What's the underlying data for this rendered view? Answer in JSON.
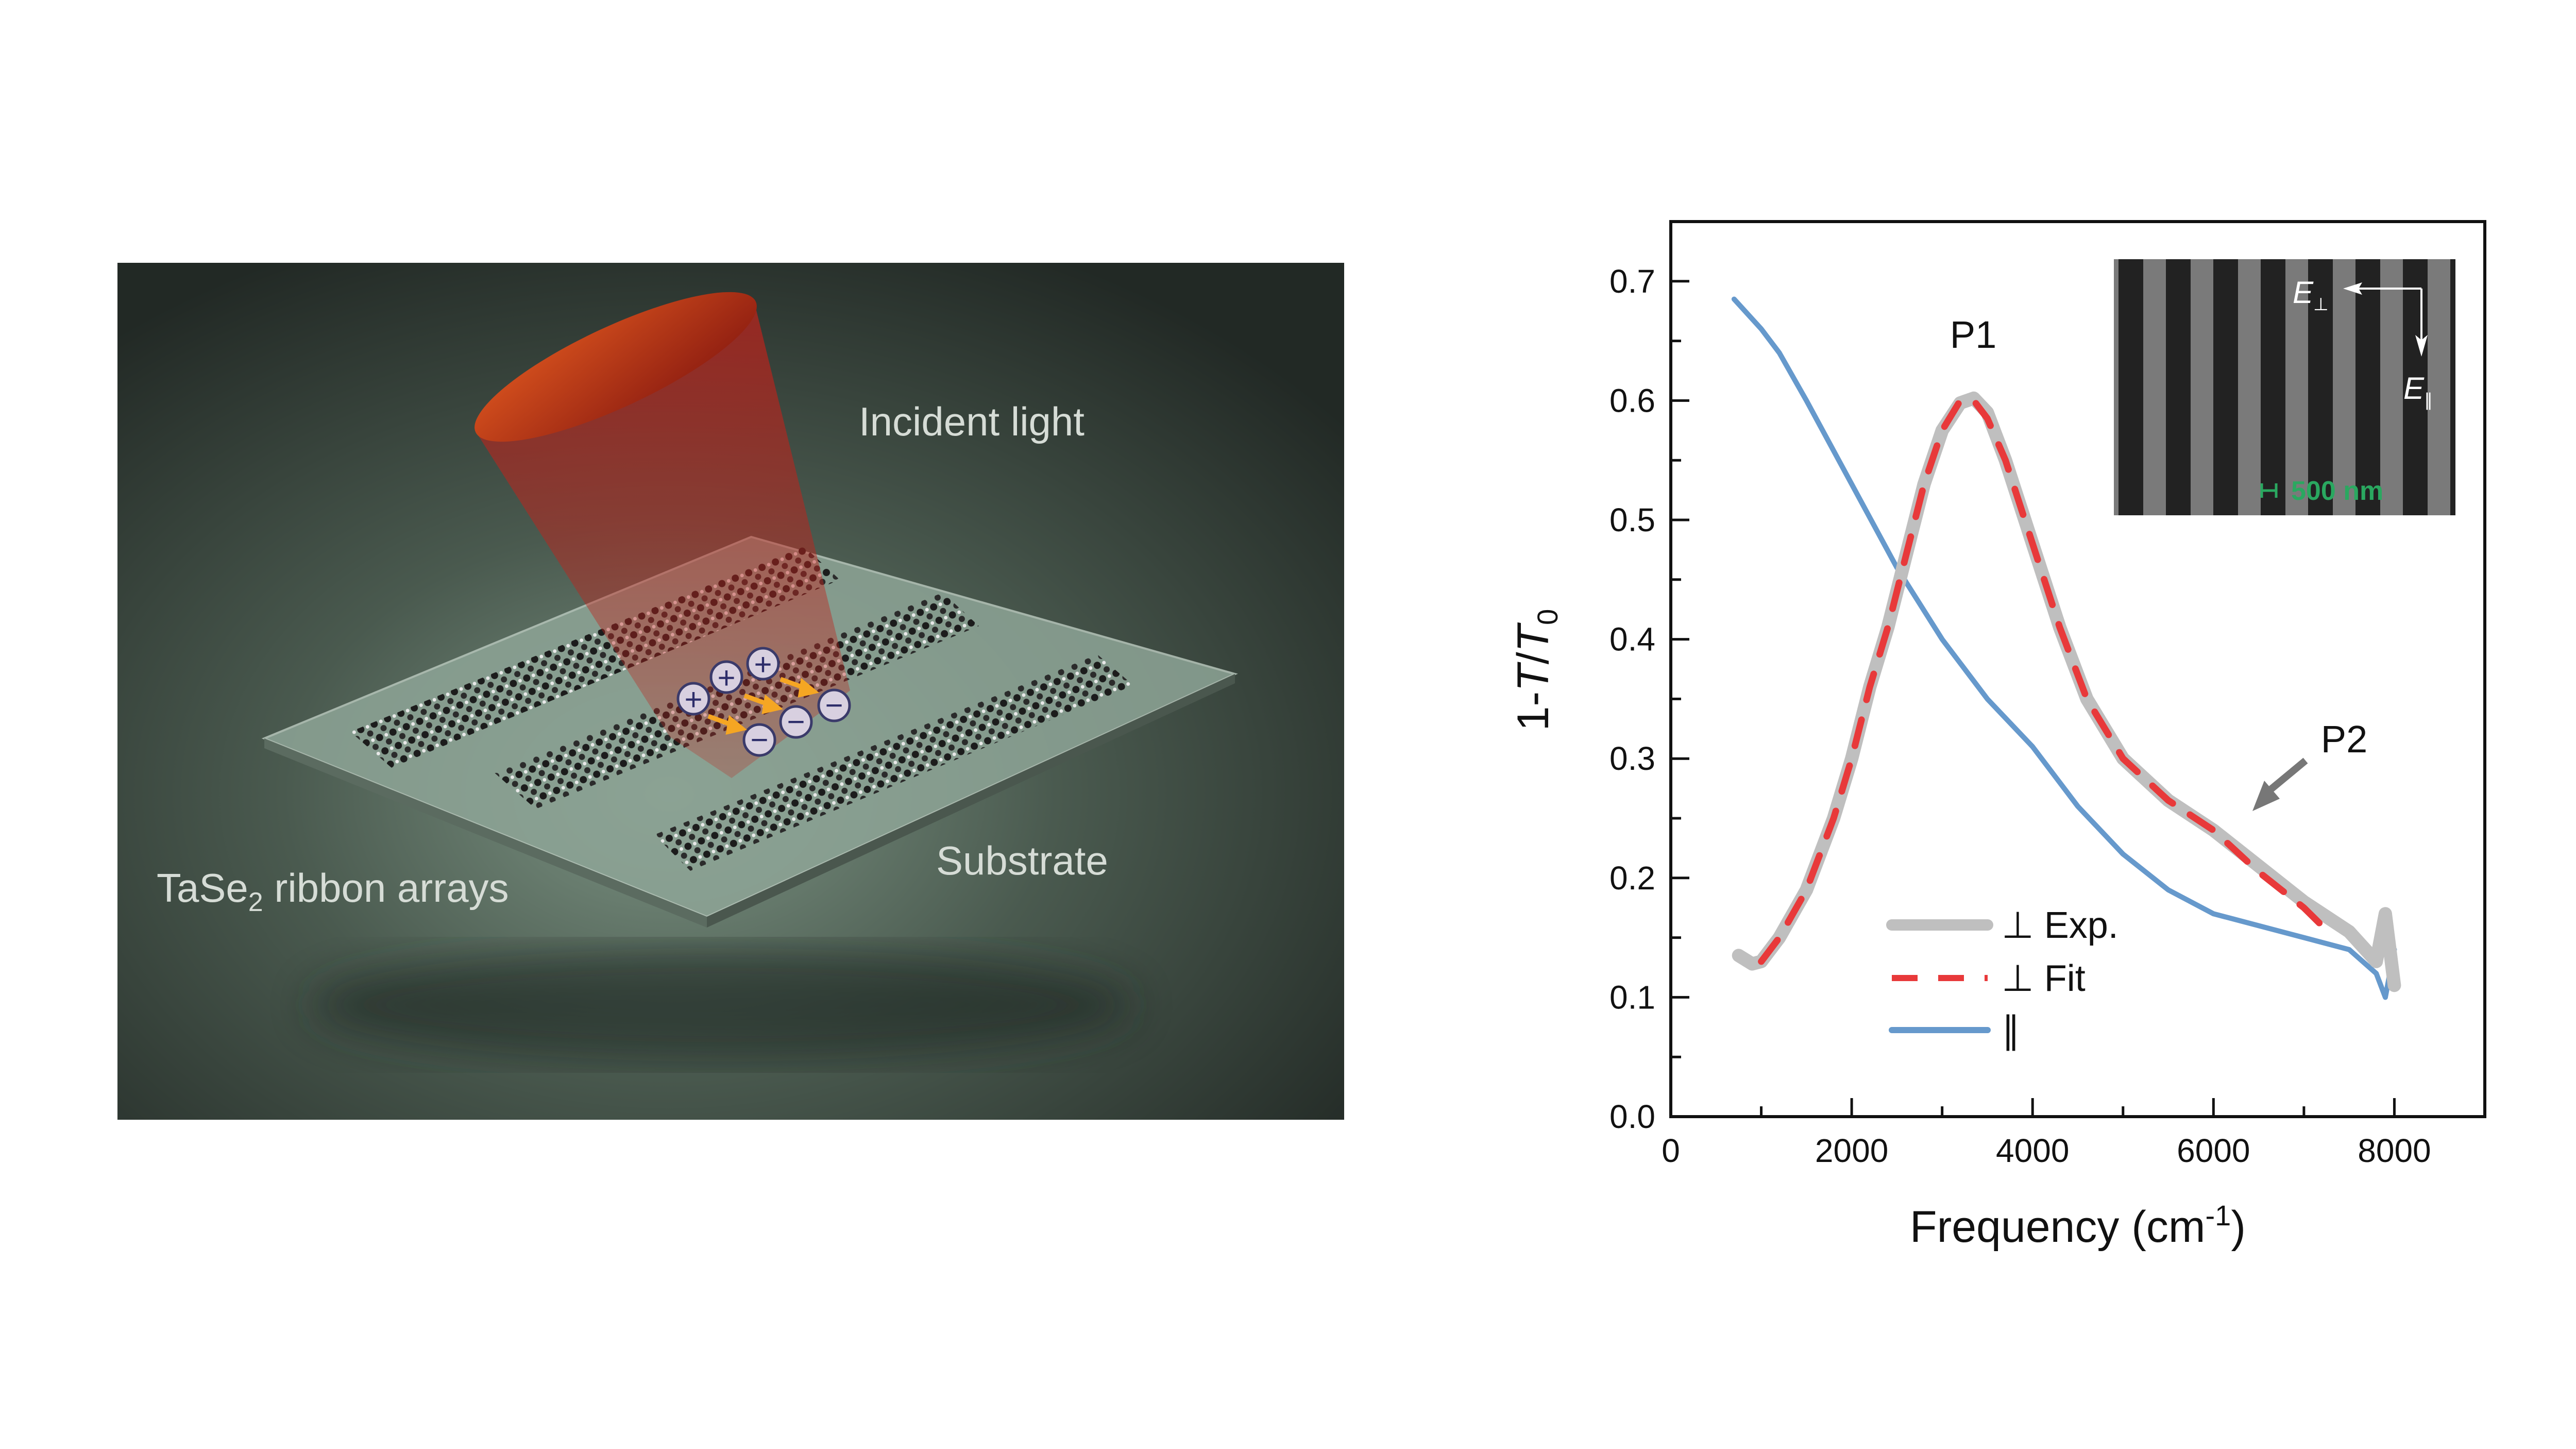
{
  "illustration": {
    "incident_light_label": "Incident light",
    "ribbon_label_main": "TaSe",
    "ribbon_label_sub": "2",
    "ribbon_label_rest": " ribbon arrays",
    "substrate_label": "Substrate",
    "charges": {
      "plus": "+",
      "minus": "−"
    },
    "colors": {
      "background": "#2a332d",
      "substrate": "#8ea597",
      "light_cone": "#c0221b",
      "charge_arrow": "#f5a623"
    }
  },
  "chart_data": {
    "type": "line",
    "xlabel_main": "Frequency (cm",
    "xlabel_sup": "-1",
    "xlabel_end": ")",
    "ylabel_main": "1-",
    "ylabel_T": "T",
    "ylabel_slash": "/",
    "ylabel_T0": "T",
    "ylabel_sub": "0",
    "xlim": [
      0,
      9000
    ],
    "ylim": [
      0,
      0.75
    ],
    "xticks": [
      0,
      2000,
      4000,
      6000,
      8000
    ],
    "xtick_labels": [
      "0",
      "2000",
      "4000",
      "6000",
      "8000"
    ],
    "yticks": [
      0,
      0.1,
      0.2,
      0.3,
      0.4,
      0.5,
      0.6,
      0.7
    ],
    "ytick_labels": [
      "0.0",
      "0.1",
      "0.2",
      "0.3",
      "0.4",
      "0.5",
      "0.6",
      "0.7"
    ],
    "grid": false,
    "legend_position": "bottom-center",
    "annotations": {
      "p1": "P1",
      "p2": "P2"
    },
    "series": [
      {
        "name": "⊥ Exp.",
        "color": "#bfbfbf",
        "style": "solid-thick",
        "x": [
          750,
          900,
          1000,
          1200,
          1500,
          1800,
          2000,
          2200,
          2400,
          2600,
          2800,
          3000,
          3200,
          3350,
          3500,
          3700,
          4000,
          4300,
          4600,
          5000,
          5500,
          6000,
          6500,
          7000,
          7500,
          7800,
          7900,
          8000
        ],
        "y": [
          0.135,
          0.128,
          0.13,
          0.15,
          0.19,
          0.25,
          0.3,
          0.36,
          0.41,
          0.47,
          0.53,
          0.575,
          0.598,
          0.602,
          0.59,
          0.55,
          0.48,
          0.41,
          0.35,
          0.3,
          0.265,
          0.24,
          0.21,
          0.18,
          0.155,
          0.13,
          0.17,
          0.11
        ]
      },
      {
        "name": "⊥ Fit",
        "color": "#e8393a",
        "style": "dashed",
        "x": [
          1000,
          1200,
          1500,
          1800,
          2000,
          2200,
          2400,
          2600,
          2800,
          3000,
          3200,
          3350,
          3500,
          3700,
          4000,
          4300,
          4600,
          5000,
          5500,
          6000,
          6500,
          7000,
          7200
        ],
        "y": [
          0.13,
          0.15,
          0.19,
          0.25,
          0.3,
          0.36,
          0.41,
          0.47,
          0.53,
          0.575,
          0.6,
          0.6,
          0.585,
          0.55,
          0.48,
          0.41,
          0.35,
          0.3,
          0.265,
          0.24,
          0.205,
          0.175,
          0.16
        ]
      },
      {
        "name": "∥",
        "color": "#6699cc",
        "style": "solid",
        "x": [
          700,
          1000,
          1200,
          1500,
          2000,
          2500,
          3000,
          3500,
          4000,
          4500,
          5000,
          5500,
          6000,
          6500,
          7000,
          7500,
          7800,
          7900,
          8000
        ],
        "y": [
          0.685,
          0.66,
          0.64,
          0.6,
          0.53,
          0.46,
          0.4,
          0.35,
          0.31,
          0.26,
          0.22,
          0.19,
          0.17,
          0.16,
          0.15,
          0.14,
          0.12,
          0.1,
          0.14
        ]
      }
    ],
    "inset": {
      "e_perp": "E",
      "e_perp_sub": "⊥",
      "e_par": "E",
      "e_par_sub": "∥",
      "scale_bar": "500 nm",
      "scale_color": "#2aa860"
    }
  }
}
